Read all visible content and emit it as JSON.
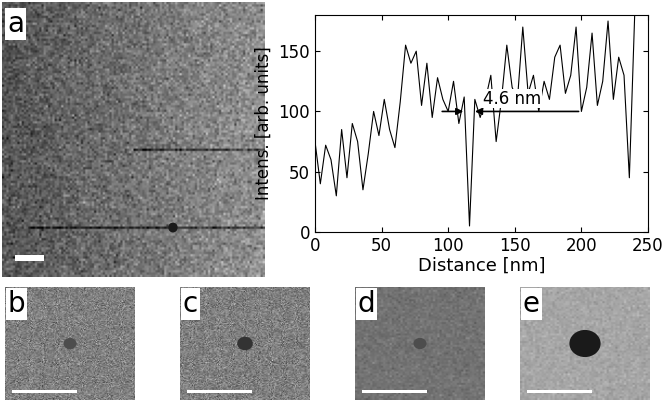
{
  "panel_labels": [
    "a",
    "b",
    "c",
    "d",
    "e"
  ],
  "chart_data": {
    "type": "line",
    "x": [
      0,
      4,
      8,
      12,
      16,
      20,
      24,
      28,
      32,
      36,
      40,
      44,
      48,
      52,
      56,
      60,
      64,
      68,
      72,
      76,
      80,
      84,
      88,
      92,
      96,
      100,
      104,
      108,
      112,
      116,
      120,
      124,
      128,
      132,
      136,
      140,
      144,
      148,
      152,
      156,
      160,
      164,
      168,
      172,
      176,
      180,
      184,
      188,
      192,
      196,
      200,
      204,
      208,
      212,
      216,
      220,
      224,
      228,
      232,
      236,
      240
    ],
    "values": [
      75,
      40,
      72,
      60,
      30,
      85,
      45,
      90,
      75,
      35,
      65,
      100,
      80,
      110,
      85,
      70,
      108,
      155,
      140,
      150,
      105,
      140,
      95,
      128,
      110,
      100,
      125,
      90,
      112,
      5,
      110,
      95,
      110,
      130,
      75,
      110,
      155,
      120,
      110,
      170,
      115,
      130,
      100,
      125,
      110,
      145,
      155,
      115,
      130,
      170,
      100,
      120,
      165,
      105,
      125,
      175,
      110,
      145,
      130,
      45,
      180
    ],
    "color": "#000000",
    "xlabel": "Distance [nm]",
    "ylabel": "Intens. [arb. units]",
    "xlim": [
      0,
      250
    ],
    "ylim": [
      0,
      180
    ],
    "xticks": [
      0,
      50,
      100,
      150,
      200,
      250
    ],
    "yticks": [
      0,
      50,
      100,
      150
    ],
    "annotation": {
      "text": "4.6 nm",
      "x": [
        113.4,
        118.0
      ],
      "y": 100
    }
  }
}
